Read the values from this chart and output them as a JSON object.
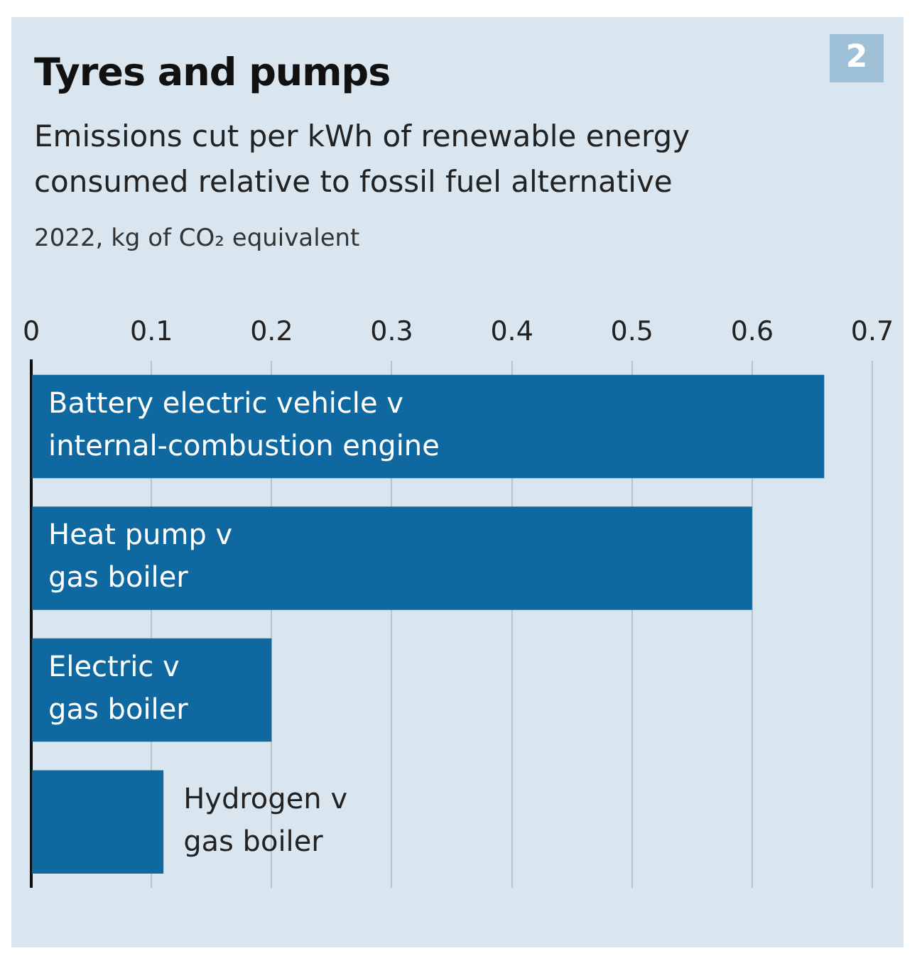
{
  "chart_data": {
    "type": "bar",
    "orientation": "horizontal",
    "title": "Tyres and pumps",
    "subtitle": "Emissions cut per kWh of renewable energy consumed relative to fossil fuel alternative",
    "xlabel": "2022, kg of CO₂ equivalent",
    "annotations": [
      "2"
    ],
    "categories": [
      "Battery electric vehicle v\ninternal-combustion engine",
      "Heat pump v\ngas boiler",
      "Electric v\ngas boiler",
      "Hydrogen v\ngas boiler"
    ],
    "values": [
      0.66,
      0.6,
      0.2,
      0.11
    ],
    "color": "#0f69a0",
    "xlim": [
      0,
      0.7
    ],
    "xticks": [
      0,
      0.1,
      0.2,
      0.3,
      0.4,
      0.5,
      0.6,
      0.7
    ],
    "grid": "x",
    "legend": false
  }
}
